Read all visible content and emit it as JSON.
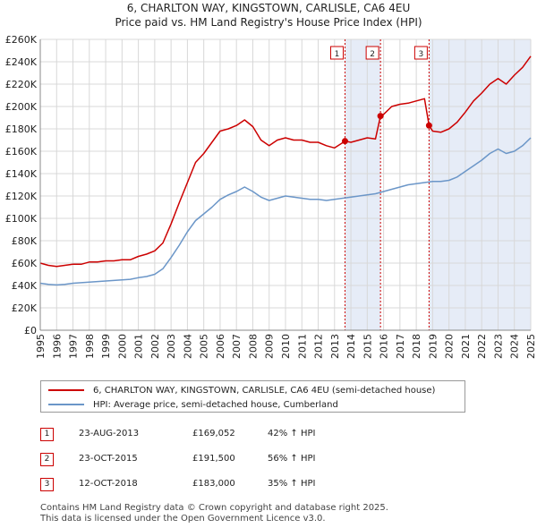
{
  "chart_data": {
    "type": "line",
    "title": "6, CHARLTON WAY, KINGSTOWN, CARLISLE, CA6 4EU",
    "subtitle": "Price paid vs. HM Land Registry's House Price Index (HPI)",
    "xlabel": "",
    "ylabel": "",
    "xlim": [
      1995,
      2025
    ],
    "ylim": [
      0,
      260000
    ],
    "x_ticks": [
      "1995",
      "1996",
      "1997",
      "1998",
      "1999",
      "2000",
      "2001",
      "2002",
      "2003",
      "2004",
      "2005",
      "2006",
      "2007",
      "2008",
      "2009",
      "2010",
      "2011",
      "2012",
      "2013",
      "2014",
      "2015",
      "2016",
      "2017",
      "2018",
      "2019",
      "2020",
      "2021",
      "2022",
      "2023",
      "2024",
      "2025"
    ],
    "y_ticks": [
      {
        "value": 0,
        "label": "£0"
      },
      {
        "value": 20000,
        "label": "£20K"
      },
      {
        "value": 40000,
        "label": "£40K"
      },
      {
        "value": 60000,
        "label": "£60K"
      },
      {
        "value": 80000,
        "label": "£80K"
      },
      {
        "value": 100000,
        "label": "£100K"
      },
      {
        "value": 120000,
        "label": "£120K"
      },
      {
        "value": 140000,
        "label": "£140K"
      },
      {
        "value": 160000,
        "label": "£160K"
      },
      {
        "value": 180000,
        "label": "£180K"
      },
      {
        "value": 200000,
        "label": "£200K"
      },
      {
        "value": 220000,
        "label": "£220K"
      },
      {
        "value": 240000,
        "label": "£240K"
      },
      {
        "value": 260000,
        "label": "£260K"
      }
    ],
    "series": [
      {
        "name": "6, CHARLTON WAY, KINGSTOWN, CARLISLE, CA6 4EU (semi-detached house)",
        "color": "#cc0000",
        "x": [
          1995.0,
          1995.5,
          1996.0,
          1996.5,
          1997.0,
          1997.5,
          1998.0,
          1998.5,
          1999.0,
          1999.5,
          2000.0,
          2000.5,
          2001.0,
          2001.5,
          2002.0,
          2002.5,
          2003.0,
          2003.5,
          2004.0,
          2004.5,
          2005.0,
          2005.5,
          2006.0,
          2006.5,
          2007.0,
          2007.5,
          2008.0,
          2008.5,
          2009.0,
          2009.5,
          2010.0,
          2010.5,
          2011.0,
          2011.5,
          2012.0,
          2012.5,
          2013.0,
          2013.64,
          2014.0,
          2014.5,
          2015.0,
          2015.5,
          2015.81,
          2016.0,
          2016.5,
          2017.0,
          2017.5,
          2018.0,
          2018.5,
          2018.78,
          2019.0,
          2019.5,
          2020.0,
          2020.5,
          2021.0,
          2021.5,
          2022.0,
          2022.5,
          2023.0,
          2023.5,
          2024.0,
          2024.5,
          2025.0
        ],
        "values": [
          60000,
          58000,
          57000,
          58000,
          59000,
          59000,
          61000,
          61000,
          62000,
          62000,
          63000,
          63000,
          66000,
          68000,
          71000,
          78000,
          95000,
          114000,
          132000,
          150000,
          158000,
          168000,
          178000,
          180000,
          183000,
          188000,
          182000,
          170000,
          165000,
          170000,
          172000,
          170000,
          170000,
          168000,
          168000,
          165000,
          163000,
          169052,
          168000,
          170000,
          172000,
          171000,
          191500,
          193000,
          200000,
          202000,
          203000,
          205000,
          207000,
          183000,
          178000,
          177000,
          180000,
          186000,
          195000,
          205000,
          212000,
          220000,
          225000,
          220000,
          228000,
          235000,
          245000
        ]
      },
      {
        "name": "HPI: Average price, semi-detached house, Cumberland",
        "color": "#6b96c8",
        "x": [
          1995.0,
          1995.5,
          1996.0,
          1996.5,
          1997.0,
          1997.5,
          1998.0,
          1998.5,
          1999.0,
          1999.5,
          2000.0,
          2000.5,
          2001.0,
          2001.5,
          2002.0,
          2002.5,
          2003.0,
          2003.5,
          2004.0,
          2004.5,
          2005.0,
          2005.5,
          2006.0,
          2006.5,
          2007.0,
          2007.5,
          2008.0,
          2008.5,
          2009.0,
          2009.5,
          2010.0,
          2010.5,
          2011.0,
          2011.5,
          2012.0,
          2012.5,
          2013.0,
          2013.5,
          2014.0,
          2014.5,
          2015.0,
          2015.5,
          2016.0,
          2016.5,
          2017.0,
          2017.5,
          2018.0,
          2018.5,
          2019.0,
          2019.5,
          2020.0,
          2020.5,
          2021.0,
          2021.5,
          2022.0,
          2022.5,
          2023.0,
          2023.5,
          2024.0,
          2024.5,
          2025.0
        ],
        "values": [
          42000,
          41000,
          40500,
          41000,
          42000,
          42500,
          43000,
          43500,
          44000,
          44500,
          45000,
          45500,
          47000,
          48000,
          50000,
          55000,
          65000,
          76000,
          88000,
          98000,
          104000,
          110000,
          117000,
          121000,
          124000,
          128000,
          124000,
          119000,
          116000,
          118000,
          120000,
          119000,
          118000,
          117000,
          117000,
          116000,
          117000,
          118000,
          119000,
          120000,
          121000,
          122000,
          124000,
          126000,
          128000,
          130000,
          131000,
          132000,
          133000,
          133000,
          134000,
          137000,
          142000,
          147000,
          152000,
          158000,
          162000,
          158000,
          160000,
          165000,
          172000
        ]
      }
    ],
    "sales": [
      {
        "marker": "1",
        "x": 2013.64,
        "value": 169052
      },
      {
        "marker": "2",
        "x": 2015.81,
        "value": 191500
      },
      {
        "marker": "3",
        "x": 2018.78,
        "value": 183000
      }
    ],
    "legend_position": "below"
  },
  "title": {
    "line1": "6, CHARLTON WAY, KINGSTOWN, CARLISLE, CA6 4EU",
    "line2": "Price paid vs. HM Land Registry's House Price Index (HPI)"
  },
  "legend": {
    "property": "6, CHARLTON WAY, KINGSTOWN, CARLISLE, CA6 4EU (semi-detached house)",
    "hpi": "HPI: Average price, semi-detached house, Cumberland"
  },
  "sales_table": [
    {
      "num": "1",
      "date": "23-AUG-2013",
      "price": "£169,052",
      "hpi": "42% ↑ HPI"
    },
    {
      "num": "2",
      "date": "23-OCT-2015",
      "price": "£191,500",
      "hpi": "56% ↑ HPI"
    },
    {
      "num": "3",
      "date": "12-OCT-2018",
      "price": "£183,000",
      "hpi": "35% ↑ HPI"
    }
  ],
  "colors": {
    "property_line": "#cc0000",
    "hpi_line": "#6b96c8",
    "band": "#e6ecf7",
    "marker_border": "#cc0000"
  },
  "footer": {
    "line1": "Contains HM Land Registry data © Crown copyright and database right 2025.",
    "line2": "This data is licensed under the Open Government Licence v3.0."
  }
}
